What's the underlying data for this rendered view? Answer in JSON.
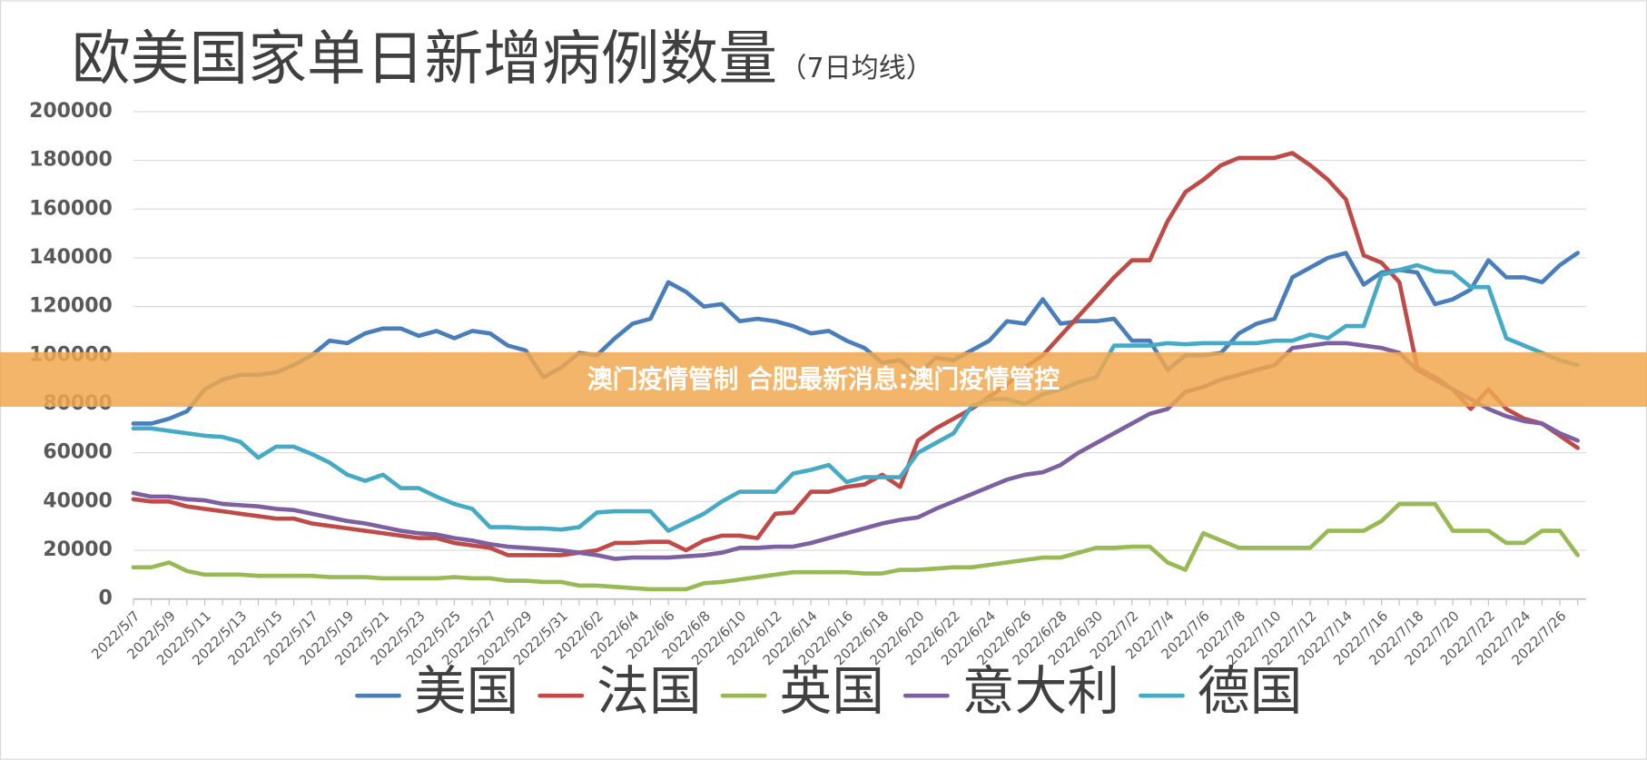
{
  "chart_data": {
    "type": "line",
    "title": "欧美国家单日新增病例数量",
    "subtitle": "（7日均线）",
    "categories": [
      "2022/5/7",
      null,
      "2022/5/9",
      null,
      "2022/5/11",
      null,
      "2022/5/13",
      null,
      "2022/5/15",
      null,
      "2022/5/17",
      null,
      "2022/5/19",
      null,
      "2022/5/21",
      null,
      "2022/5/23",
      null,
      "2022/5/25",
      null,
      "2022/5/27",
      null,
      "2022/5/29",
      null,
      "2022/5/31",
      null,
      "2022/6/2",
      null,
      "2022/6/4",
      null,
      "2022/6/6",
      null,
      "2022/6/8",
      null,
      "2022/6/10",
      null,
      "2022/6/12",
      null,
      "2022/6/14",
      null,
      "2022/6/16",
      null,
      "2022/6/18",
      null,
      "2022/6/20",
      null,
      "2022/6/22",
      null,
      "2022/6/24",
      null,
      "2022/6/26",
      null,
      "2022/6/28",
      null,
      "2022/6/30",
      null,
      "2022/7/2",
      null,
      "2022/7/4",
      null,
      "2022/7/6",
      null,
      "2022/7/8",
      null,
      "2022/7/10",
      null,
      "2022/7/12",
      null,
      "2022/7/14",
      null,
      "2022/7/16",
      null,
      "2022/7/18",
      null,
      "2022/7/20",
      null,
      "2022/7/22",
      null,
      "2022/7/24",
      null,
      "2022/7/26",
      null
    ],
    "series": [
      {
        "name": "美国",
        "color": "#4a7ebb",
        "values": [
          72000,
          72000,
          74000,
          77000,
          86000,
          90000,
          92000,
          92000,
          93000,
          96000,
          100000,
          106000,
          105000,
          109000,
          111000,
          111000,
          108000,
          110000,
          107000,
          110000,
          109000,
          104000,
          102000,
          91000,
          95000,
          101000,
          100000,
          107000,
          113000,
          115000,
          130000,
          126000,
          120000,
          121000,
          114000,
          115000,
          114000,
          112000,
          109000,
          110000,
          106000,
          103000,
          97000,
          98000,
          92000,
          99000,
          98000,
          102000,
          106000,
          114000,
          113000,
          123000,
          113000,
          114000,
          114000,
          115000,
          106000,
          106000,
          94000,
          100000,
          100000,
          101000,
          109000,
          113000,
          115000,
          132000,
          136000,
          140000,
          142000,
          129000,
          134000,
          135000,
          134000,
          121000,
          123000,
          127000,
          139000,
          132000,
          132000,
          130000,
          137000,
          142000
        ]
      },
      {
        "name": "法国",
        "color": "#be4b48",
        "values": [
          41000,
          40000,
          40000,
          38000,
          37000,
          36000,
          35000,
          34000,
          33000,
          33000,
          31000,
          30000,
          29000,
          28000,
          27000,
          26000,
          25000,
          25000,
          23000,
          22000,
          21000,
          18000,
          18000,
          18000,
          18000,
          19000,
          20000,
          23000,
          23000,
          23500,
          23500,
          20000,
          24000,
          26000,
          26000,
          25000,
          35000,
          35500,
          44000,
          44000,
          46000,
          47000,
          51000,
          46000,
          65000,
          70000,
          74000,
          78000,
          83000,
          88000,
          95000,
          100000,
          108000,
          116000,
          124000,
          132000,
          139000,
          139000,
          155000,
          167000,
          172000,
          178000,
          181000,
          181000,
          181000,
          183000,
          178000,
          172000,
          164000,
          141000,
          138000,
          130000,
          95000,
          91000,
          86000,
          78000,
          86000,
          78000,
          74000,
          72000,
          67000,
          62000
        ]
      },
      {
        "name": "英国",
        "color": "#98b954",
        "values": [
          13000,
          13000,
          15000,
          11500,
          10000,
          10000,
          10000,
          9500,
          9500,
          9500,
          9500,
          9000,
          9000,
          9000,
          8500,
          8500,
          8500,
          8500,
          9000,
          8500,
          8500,
          7500,
          7500,
          7000,
          7000,
          5500,
          5500,
          5000,
          4500,
          4000,
          4000,
          4000,
          6500,
          7000,
          8000,
          9000,
          10000,
          11000,
          11000,
          11000,
          11000,
          10500,
          10500,
          12000,
          12000,
          12500,
          13000,
          13000,
          14000,
          15000,
          16000,
          17000,
          17000,
          19000,
          21000,
          21000,
          21500,
          21500,
          15000,
          12000,
          27000,
          24000,
          21000,
          21000,
          21000,
          21000,
          21000,
          28000,
          28000,
          28000,
          32000,
          39000,
          39000,
          39000,
          28000,
          28000,
          28000,
          23000,
          23000,
          28000,
          28000,
          18000
        ]
      },
      {
        "name": "意大利",
        "color": "#7d60a0",
        "values": [
          43500,
          42000,
          42000,
          41000,
          40500,
          39000,
          38500,
          38000,
          37000,
          36500,
          35000,
          33500,
          32000,
          31000,
          29500,
          28000,
          27000,
          26500,
          25000,
          24000,
          22500,
          21500,
          21000,
          20500,
          20000,
          19000,
          18000,
          16500,
          17000,
          17000,
          17000,
          17500,
          18000,
          19000,
          21000,
          21000,
          21500,
          21500,
          23000,
          25000,
          27000,
          29000,
          31000,
          32500,
          33500,
          37000,
          40000,
          43000,
          46000,
          49000,
          51000,
          52000,
          55000,
          60000,
          64000,
          68000,
          72000,
          76000,
          78000,
          85000,
          87000,
          90000,
          92000,
          94000,
          96000,
          103000,
          104000,
          105000,
          105000,
          104000,
          103000,
          101000,
          94000,
          90000,
          86000,
          82000,
          78000,
          75000,
          73000,
          72000,
          68000,
          65000
        ]
      },
      {
        "name": "德国",
        "color": "#46aac5",
        "values": [
          70000,
          70000,
          69000,
          68000,
          67000,
          66500,
          64500,
          58000,
          62500,
          62500,
          59500,
          56000,
          51000,
          48500,
          51000,
          45500,
          45500,
          42000,
          39000,
          37000,
          29500,
          29500,
          29000,
          29000,
          28500,
          29500,
          35500,
          36000,
          36000,
          36000,
          28000,
          31500,
          35000,
          40000,
          44000,
          44000,
          44000,
          51500,
          53000,
          55000,
          48000,
          50000,
          50000,
          50000,
          60000,
          64000,
          68000,
          79000,
          82000,
          82000,
          80000,
          84000,
          86000,
          89000,
          91000,
          104000,
          104000,
          104000,
          105000,
          104500,
          105000,
          105000,
          105000,
          105000,
          106000,
          106000,
          108500,
          107000,
          112000,
          112000,
          133000,
          135000,
          137000,
          134500,
          134000,
          128000,
          128000,
          107000,
          104000,
          101000,
          98000,
          96000
        ]
      }
    ],
    "ylim": [
      0,
      200000
    ],
    "yticks": [
      0,
      20000,
      40000,
      60000,
      80000,
      100000,
      120000,
      140000,
      160000,
      180000,
      200000
    ],
    "grid": true,
    "legend": "bottom"
  },
  "banner": {
    "text": "澳门疫情管制 合肥最新消息:澳门疫情管控"
  }
}
